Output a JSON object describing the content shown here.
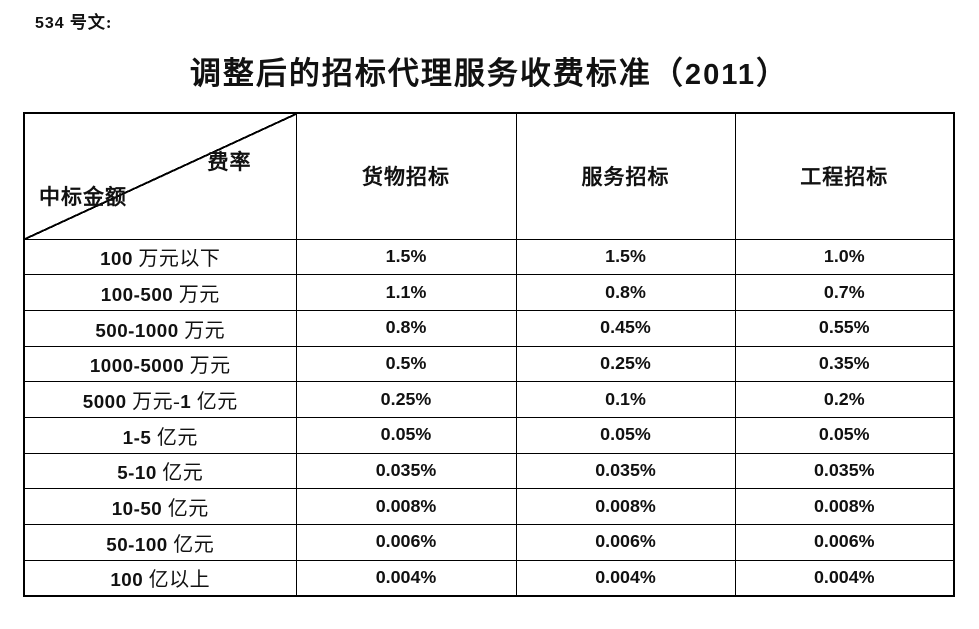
{
  "document": {
    "doc_ref": "534 号文:",
    "title": "调整后的招标代理服务收费标准（2011）"
  },
  "table": {
    "corner": {
      "rate_label": "费率",
      "amount_label": "中标金额"
    },
    "columns": [
      "货物招标",
      "服务招标",
      "工程招标"
    ],
    "rows": [
      {
        "label": "100 万元以下",
        "values": [
          "1.5%",
          "1.5%",
          "1.0%"
        ]
      },
      {
        "label": "100-500 万元",
        "values": [
          "1.1%",
          "0.8%",
          "0.7%"
        ]
      },
      {
        "label": "500-1000 万元",
        "values": [
          "0.8%",
          "0.45%",
          "0.55%"
        ]
      },
      {
        "label": "1000-5000 万元",
        "values": [
          "0.5%",
          "0.25%",
          "0.35%"
        ]
      },
      {
        "label": "5000 万元-1 亿元",
        "values": [
          "0.25%",
          "0.1%",
          "0.2%"
        ]
      },
      {
        "label": "1-5 亿元",
        "values": [
          "0.05%",
          "0.05%",
          "0.05%"
        ]
      },
      {
        "label": "5-10 亿元",
        "values": [
          "0.035%",
          "0.035%",
          "0.035%"
        ]
      },
      {
        "label": "10-50 亿元",
        "values": [
          "0.008%",
          "0.008%",
          "0.008%"
        ]
      },
      {
        "label": "50-100 亿元",
        "values": [
          "0.006%",
          "0.006%",
          "0.006%"
        ]
      },
      {
        "label": "100 亿以上",
        "values": [
          "0.004%",
          "0.004%",
          "0.004%"
        ]
      }
    ]
  }
}
